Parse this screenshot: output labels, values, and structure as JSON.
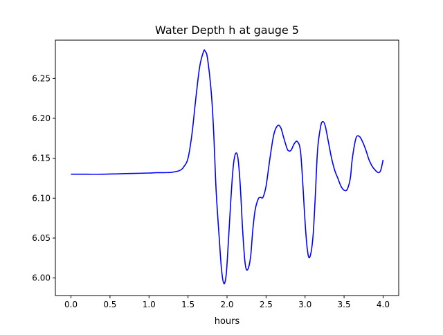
{
  "chart_data": {
    "type": "line",
    "title": "Water Depth h at gauge 5",
    "xlabel": "hours",
    "ylabel": "",
    "xlim": [
      -0.2,
      4.2
    ],
    "ylim": [
      5.978,
      6.298
    ],
    "xticks": [
      0.0,
      0.5,
      1.0,
      1.5,
      2.0,
      2.5,
      3.0,
      3.5,
      4.0
    ],
    "xtick_labels": [
      "0.0",
      "0.5",
      "1.0",
      "1.5",
      "2.0",
      "2.5",
      "3.0",
      "3.5",
      "4.0"
    ],
    "yticks": [
      6.0,
      6.05,
      6.1,
      6.15,
      6.2,
      6.25
    ],
    "ytick_labels": [
      "6.00",
      "6.05",
      "6.10",
      "6.15",
      "6.20",
      "6.25"
    ],
    "grid": false,
    "line_color": "#0000ff",
    "series": [
      {
        "name": "",
        "x": [
          0.0,
          0.2,
          0.4,
          0.6,
          0.8,
          1.0,
          1.1,
          1.2,
          1.3,
          1.4,
          1.45,
          1.5,
          1.55,
          1.6,
          1.65,
          1.7,
          1.72,
          1.75,
          1.8,
          1.83,
          1.86,
          1.9,
          1.93,
          1.96,
          1.99,
          2.02,
          2.05,
          2.08,
          2.11,
          2.14,
          2.17,
          2.2,
          2.23,
          2.26,
          2.3,
          2.33,
          2.36,
          2.4,
          2.43,
          2.46,
          2.5,
          2.55,
          2.6,
          2.65,
          2.69,
          2.72,
          2.75,
          2.78,
          2.82,
          2.86,
          2.9,
          2.94,
          2.97,
          3.0,
          3.03,
          3.06,
          3.1,
          3.13,
          3.16,
          3.2,
          3.23,
          3.26,
          3.3,
          3.34,
          3.38,
          3.42,
          3.46,
          3.5,
          3.54,
          3.58,
          3.6,
          3.63,
          3.66,
          3.7,
          3.74,
          3.78,
          3.82,
          3.86,
          3.9,
          3.94,
          3.97,
          4.0
        ],
        "y": [
          6.13,
          6.13,
          6.13,
          6.1305,
          6.131,
          6.1315,
          6.132,
          6.132,
          6.1325,
          6.135,
          6.14,
          6.15,
          6.18,
          6.225,
          6.265,
          6.284,
          6.284,
          6.275,
          6.23,
          6.18,
          6.11,
          6.05,
          6.01,
          5.993,
          6.005,
          6.05,
          6.1,
          6.14,
          6.156,
          6.15,
          6.115,
          6.06,
          6.02,
          6.01,
          6.025,
          6.06,
          6.085,
          6.099,
          6.101,
          6.101,
          6.115,
          6.15,
          6.18,
          6.191,
          6.188,
          6.178,
          6.168,
          6.16,
          6.16,
          6.168,
          6.171,
          6.16,
          6.12,
          6.07,
          6.035,
          6.026,
          6.05,
          6.1,
          6.16,
          6.19,
          6.196,
          6.19,
          6.17,
          6.15,
          6.135,
          6.125,
          6.115,
          6.11,
          6.111,
          6.125,
          6.145,
          6.165,
          6.177,
          6.177,
          6.17,
          6.16,
          6.148,
          6.14,
          6.135,
          6.132,
          6.135,
          6.148
        ]
      }
    ]
  }
}
